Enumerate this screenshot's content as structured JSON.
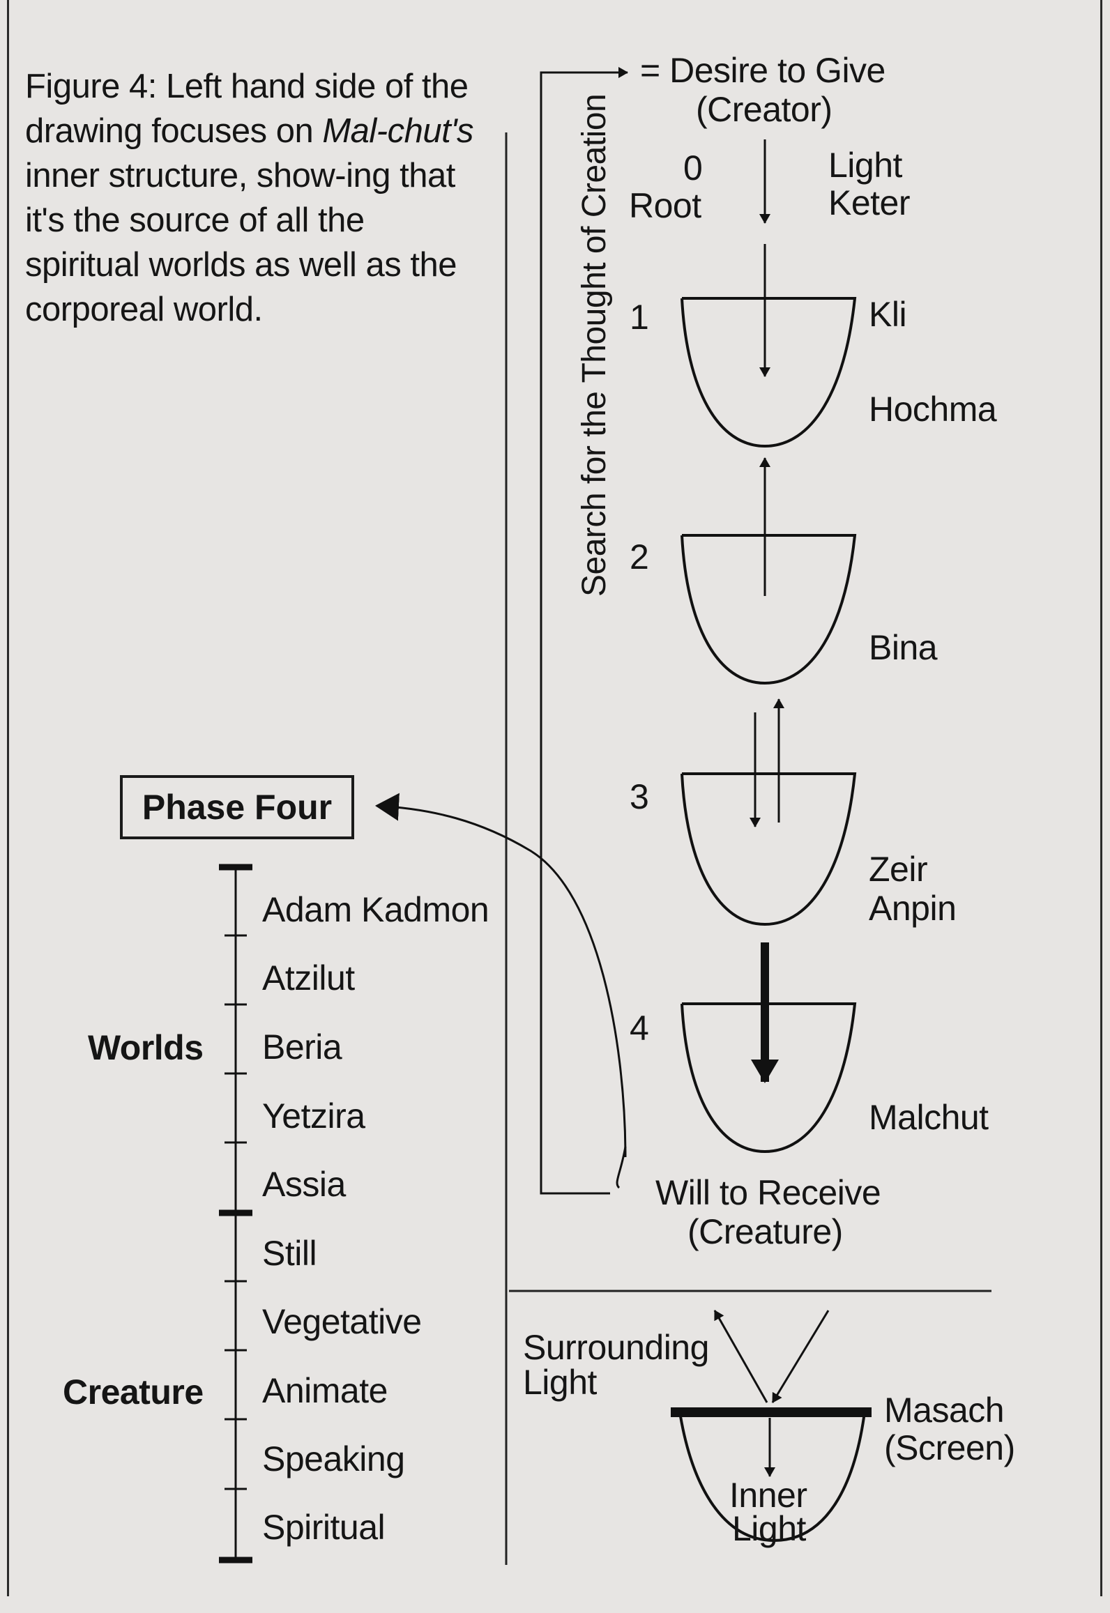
{
  "caption": {
    "part1": "Figure 4: Left hand side of the drawing focuses on ",
    "italic1": "Mal-chut's",
    "part2": " inner structure, show-ing that it's the source of all the spiritual worlds as well as the corporeal world."
  },
  "top": {
    "desire": "= Desire to Give",
    "creator": "(Creator)",
    "phase0_num": "0",
    "root": "Root",
    "light": "Light",
    "keter": "Keter"
  },
  "phases": [
    {
      "num": "1",
      "labels": [
        "Kli",
        "Hochma"
      ]
    },
    {
      "num": "2",
      "labels": [
        "Bina"
      ]
    },
    {
      "num": "3",
      "labels": [
        "Zeir",
        "Anpin"
      ]
    },
    {
      "num": "4",
      "labels": [
        "Malchut"
      ]
    }
  ],
  "vertical_label": "Search for the Thought of Creation",
  "bottom": {
    "will": "Will to Receive",
    "creature": "(Creature)"
  },
  "phase_four": "Phase Four",
  "worlds": {
    "group": "Worlds",
    "items": [
      "Adam Kadmon",
      "Atzilut",
      "Beria",
      "Yetzira",
      "Assia"
    ]
  },
  "creature_scale": {
    "group": "Creature",
    "items": [
      "Still",
      "Vegetative",
      "Animate",
      "Speaking",
      "Spiritual"
    ]
  },
  "screen_panel": {
    "surrounding1": "Surrounding",
    "surrounding2": "Light",
    "masach1": "Masach",
    "masach2": "(Screen)",
    "inner1": "Inner",
    "inner2": "Light"
  }
}
